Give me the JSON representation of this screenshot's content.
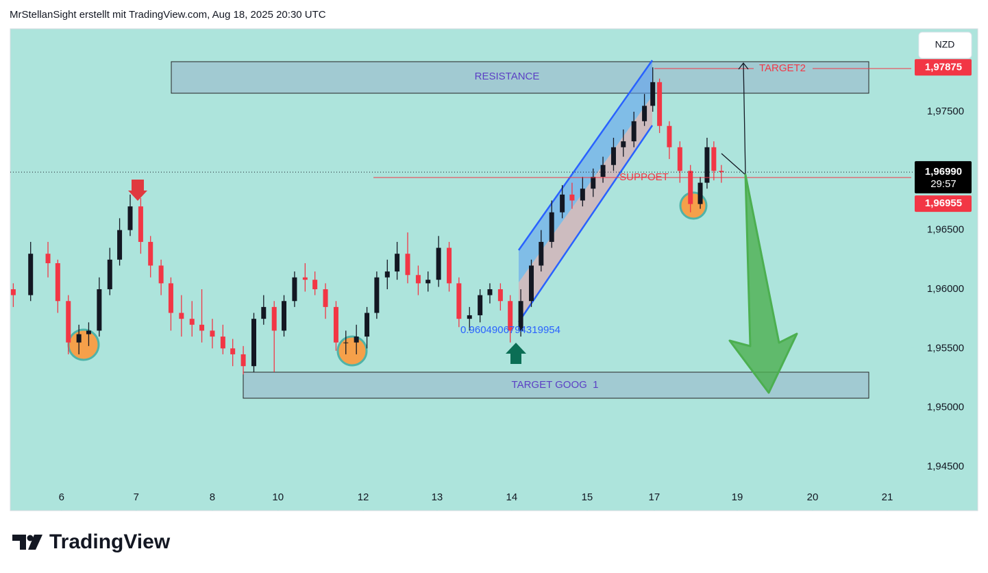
{
  "header": "MrStellanSight erstellt mit TradingView.com, Aug 18, 2025 20:30 UTC",
  "logo": "TradingView",
  "currency_button": "NZD",
  "chart_data": {
    "type": "candlestick",
    "x": [
      -0.64,
      -0.41,
      -0.18,
      -0.05,
      0.09,
      0.23,
      0.36,
      0.5,
      0.64,
      0.77,
      0.91,
      1.05,
      1.18,
      1.32,
      1.45,
      1.59,
      1.73,
      1.86,
      2,
      2.14,
      2.27,
      2.41,
      2.55,
      2.68,
      2.82,
      2.95,
      3.09,
      3.23,
      3.36,
      3.5,
      3.64,
      3.77,
      3.91,
      4.05,
      4.18,
      4.32,
      4.45,
      4.59,
      4.73,
      4.86,
      5,
      5.14,
      5.27,
      5.41,
      5.55,
      5.68,
      5.82,
      5.95,
      6.09,
      6.23,
      6.36,
      6.5,
      6.64,
      6.77,
      6.91,
      7.05,
      7.18,
      7.32,
      7.45,
      7.59,
      7.73,
      7.84,
      7.93,
      8.06,
      8.2,
      8.34,
      8.47,
      8.56,
      8.65,
      8.75
    ],
    "open": [
      1.96,
      1.9595,
      1.963,
      1.9622,
      1.959,
      1.9555,
      1.9562,
      1.9565,
      1.96,
      1.9625,
      1.965,
      1.967,
      1.964,
      1.962,
      1.9605,
      1.958,
      1.9575,
      1.957,
      1.9565,
      1.956,
      1.955,
      1.9545,
      1.9535,
      1.9575,
      1.9585,
      1.9565,
      1.959,
      1.961,
      1.9608,
      1.96,
      1.9585,
      1.9555,
      1.9555,
      1.956,
      1.958,
      1.961,
      1.9615,
      1.963,
      1.9612,
      1.9605,
      1.9608,
      1.9635,
      1.9605,
      1.9575,
      1.9578,
      1.9595,
      1.96,
      1.959,
      1.9565,
      1.959,
      1.962,
      1.964,
      1.9665,
      1.968,
      1.9675,
      1.9685,
      1.9695,
      1.9705,
      1.972,
      1.9725,
      1.9742,
      1.9755,
      1.9775,
      1.9738,
      1.972,
      1.97,
      1.9672,
      1.969,
      1.972,
      1.97
    ],
    "high": [
      1.9605,
      1.964,
      1.964,
      1.9625,
      1.9595,
      1.957,
      1.9572,
      1.961,
      1.9635,
      1.966,
      1.968,
      1.9677,
      1.9645,
      1.9625,
      1.961,
      1.9595,
      1.959,
      1.96,
      1.9575,
      1.957,
      1.9558,
      1.9552,
      1.958,
      1.9595,
      1.959,
      1.9595,
      1.9615,
      1.9622,
      1.9615,
      1.9605,
      1.959,
      1.9565,
      1.957,
      1.9585,
      1.9615,
      1.9625,
      1.964,
      1.9648,
      1.962,
      1.9615,
      1.9645,
      1.964,
      1.961,
      1.9585,
      1.96,
      1.9605,
      1.9605,
      1.9595,
      1.96,
      1.9625,
      1.965,
      1.9675,
      1.9688,
      1.969,
      1.9695,
      1.9702,
      1.9712,
      1.9728,
      1.9735,
      1.975,
      1.9765,
      1.97875,
      1.9778,
      1.9742,
      1.9725,
      1.9705,
      1.9695,
      1.9728,
      1.9725,
      1.9705
    ],
    "low": [
      1.9585,
      1.959,
      1.961,
      1.958,
      1.9545,
      1.9545,
      1.9552,
      1.956,
      1.9595,
      1.962,
      1.9645,
      1.963,
      1.961,
      1.9595,
      1.9565,
      1.956,
      1.956,
      1.9555,
      1.955,
      1.9545,
      1.9535,
      1.9528,
      1.953,
      1.957,
      1.953,
      1.956,
      1.9585,
      1.9598,
      1.9595,
      1.9575,
      1.9548,
      1.9545,
      1.9545,
      1.955,
      1.9575,
      1.96,
      1.9608,
      1.9605,
      1.9595,
      1.9598,
      1.9602,
      1.9598,
      1.9568,
      1.9565,
      1.9572,
      1.9588,
      1.9582,
      1.9555,
      1.956,
      1.9585,
      1.9615,
      1.9635,
      1.966,
      1.9668,
      1.967,
      1.9678,
      1.969,
      1.97,
      1.9712,
      1.972,
      1.9738,
      1.975,
      1.9732,
      1.971,
      1.969,
      1.9665,
      1.9668,
      1.9685,
      1.9692,
      1.969
    ],
    "close": [
      1.9595,
      1.963,
      1.9622,
      1.959,
      1.9555,
      1.9562,
      1.9565,
      1.96,
      1.9625,
      1.965,
      1.967,
      1.964,
      1.962,
      1.9605,
      1.958,
      1.9575,
      1.957,
      1.9565,
      1.956,
      1.955,
      1.9545,
      1.9535,
      1.9575,
      1.9585,
      1.9565,
      1.959,
      1.961,
      1.9608,
      1.96,
      1.9585,
      1.9555,
      1.9555,
      1.956,
      1.958,
      1.961,
      1.9615,
      1.963,
      1.9612,
      1.9605,
      1.9608,
      1.9635,
      1.9605,
      1.9575,
      1.9578,
      1.9595,
      1.96,
      1.959,
      1.9565,
      1.959,
      1.962,
      1.964,
      1.9665,
      1.968,
      1.9675,
      1.9685,
      1.9695,
      1.9705,
      1.972,
      1.9725,
      1.9742,
      1.9755,
      1.9775,
      1.9738,
      1.972,
      1.97,
      1.9672,
      1.969,
      1.972,
      1.97,
      1.9699
    ],
    "up_color": "#131722",
    "down_color": "#f23645",
    "xlim": [
      -0.68,
      11.25
    ],
    "xticks": [
      {
        "value": 0,
        "label": "6"
      },
      {
        "value": 0.99,
        "label": "7"
      },
      {
        "value": 2,
        "label": "8"
      },
      {
        "value": 2.87,
        "label": "10"
      },
      {
        "value": 4.0,
        "label": "12"
      },
      {
        "value": 4.98,
        "label": "13"
      },
      {
        "value": 5.97,
        "label": "14"
      },
      {
        "value": 6.97,
        "label": "15"
      },
      {
        "value": 7.86,
        "label": "17"
      },
      {
        "value": 8.96,
        "label": "19"
      },
      {
        "value": 9.96,
        "label": "20"
      },
      {
        "value": 10.95,
        "label": "21"
      }
    ],
    "ylim": [
      1.94129,
      1.98201
    ],
    "yticks": [
      {
        "value": 1.945,
        "label": "1,94500"
      },
      {
        "value": 1.95,
        "label": "1,95000"
      },
      {
        "value": 1.955,
        "label": "1,95500"
      },
      {
        "value": 1.96,
        "label": "1,96000"
      },
      {
        "value": 1.965,
        "label": "1,96500"
      },
      {
        "value": 1.975,
        "label": "1,97500"
      }
    ],
    "last_price": {
      "value": 1.9699,
      "label": "1,96990"
    },
    "countdown": "29:57",
    "price_labels": [
      {
        "value": 1.97875,
        "label": "1,97875",
        "color": "#f23645"
      },
      {
        "value": 1.96955,
        "label": "1,96955",
        "color": "#f23645"
      }
    ],
    "annotations": {
      "resistance": "RESISTANCE",
      "target2": "TARGET2",
      "support": "SUPPOET",
      "level_text": "0.9604906794319954",
      "target1": "TARGET GOOG  1"
    }
  }
}
